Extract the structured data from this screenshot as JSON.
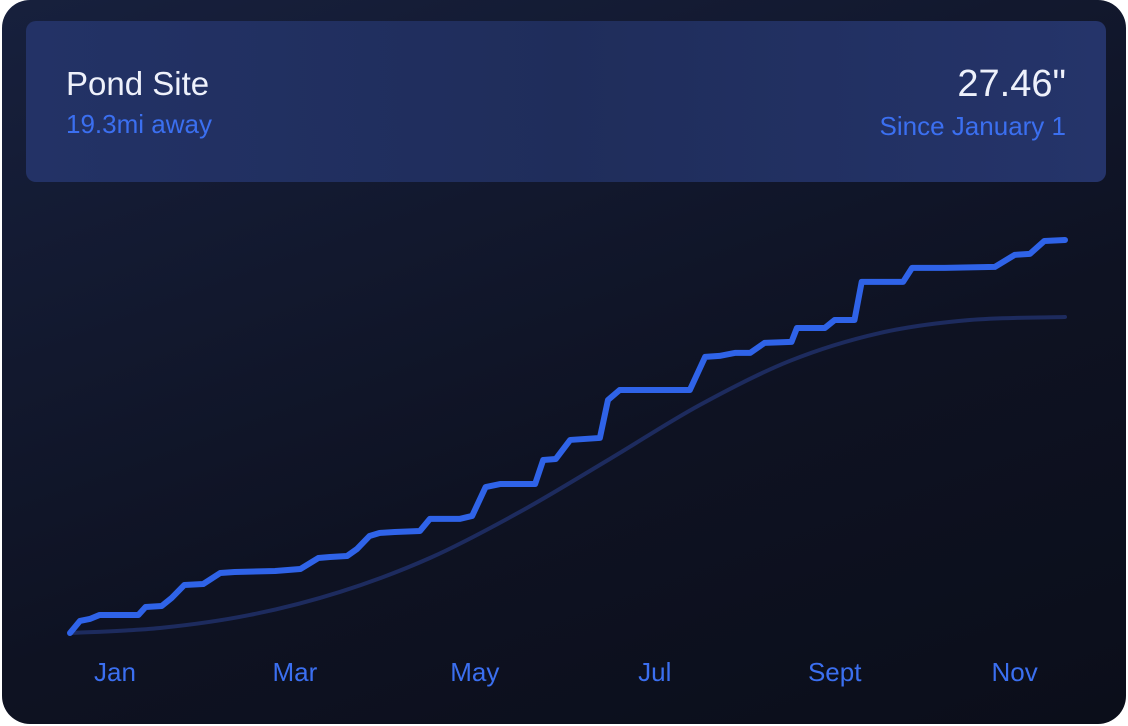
{
  "header": {
    "title": "Pond Site",
    "subtitle": "19.3mi away",
    "total": "27.46\"",
    "total_caption": "Since January 1"
  },
  "chart_data": {
    "type": "line",
    "xlim": [
      0,
      11.06
    ],
    "ylim": [
      0,
      27.46
    ],
    "xticks": [
      {
        "value": 0.5,
        "label": "Jan"
      },
      {
        "value": 2.5,
        "label": "Mar"
      },
      {
        "value": 4.5,
        "label": "May"
      },
      {
        "value": 6.5,
        "label": "Jul"
      },
      {
        "value": 8.5,
        "label": "Sept"
      },
      {
        "value": 10.5,
        "label": "Nov"
      }
    ],
    "series": [
      {
        "color": "#1d2b5e",
        "smooth": true,
        "x": [
          0,
          1,
          2,
          3,
          4,
          5,
          6,
          7,
          8,
          9,
          10,
          11.06
        ],
        "values": [
          0,
          0.35,
          1.26,
          2.87,
          5.24,
          8.46,
          12.16,
          15.93,
          19.01,
          20.96,
          21.87,
          22.08
        ]
      },
      {
        "color": "#2f63e8",
        "smooth": false,
        "x": [
          0,
          0.11,
          0.22,
          0.33,
          0.76,
          0.84,
          1.02,
          1.13,
          1.27,
          1.48,
          1.67,
          1.83,
          2.28,
          2.56,
          2.76,
          2.89,
          3.08,
          3.19,
          3.33,
          3.44,
          3.61,
          3.89,
          4.0,
          4.33,
          4.47,
          4.62,
          4.78,
          5.17,
          5.26,
          5.4,
          5.56,
          5.89,
          5.98,
          6.11,
          6.89,
          7.06,
          7.22,
          7.39,
          7.56,
          7.72,
          8.02,
          8.08,
          8.39,
          8.5,
          8.72,
          8.8,
          9.26,
          9.36,
          9.72,
          10.28,
          10.5,
          10.67,
          10.83,
          11.06
        ],
        "values": [
          0,
          0.84,
          0.98,
          1.26,
          1.26,
          1.82,
          1.89,
          2.45,
          3.35,
          3.42,
          4.19,
          4.26,
          4.33,
          4.47,
          5.24,
          5.31,
          5.38,
          5.87,
          6.78,
          6.99,
          7.06,
          7.13,
          7.97,
          7.97,
          8.18,
          10.2,
          10.41,
          10.41,
          12.09,
          12.16,
          13.49,
          13.63,
          16.28,
          16.98,
          16.98,
          19.29,
          19.36,
          19.57,
          19.57,
          20.27,
          20.34,
          21.31,
          21.31,
          21.87,
          21.87,
          24.53,
          24.53,
          25.51,
          25.51,
          25.58,
          26.42,
          26.49,
          27.39,
          27.46
        ]
      }
    ]
  }
}
